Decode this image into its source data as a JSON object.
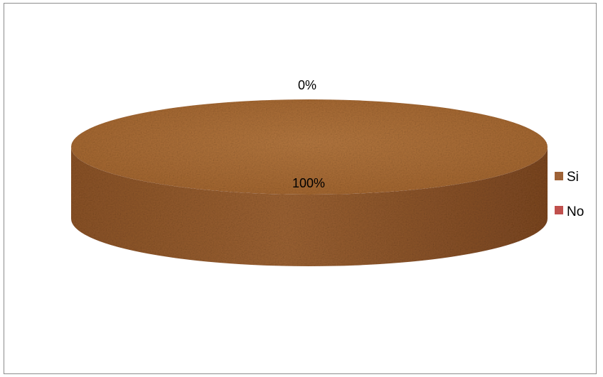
{
  "chart_data": {
    "type": "pie",
    "style": "3d",
    "categories": [
      "Si",
      "No"
    ],
    "values": [
      100,
      0
    ],
    "data_labels": [
      "100%",
      "0%"
    ],
    "title": "",
    "legend_position": "right",
    "colors": {
      "Si": "#a9693a",
      "No": "#c0504d"
    }
  }
}
